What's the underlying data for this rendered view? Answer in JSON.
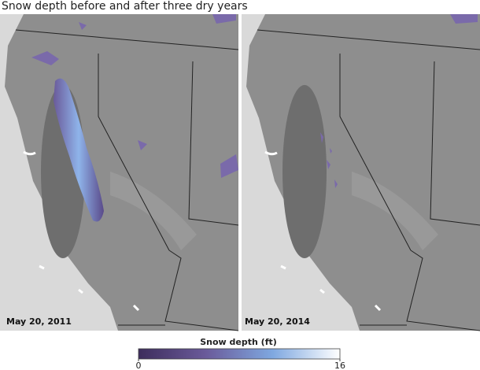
{
  "title": "Snow depth before and after three dry years",
  "panels": [
    {
      "label": "May 20, 2011"
    },
    {
      "label": "May 20, 2014"
    }
  ],
  "legend": {
    "title": "Snow depth (ft)",
    "ticks": [
      0,
      16
    ],
    "colors": [
      "#3d2d5c",
      "#6a5a9a",
      "#7fa8e0",
      "#ffffff"
    ]
  }
}
